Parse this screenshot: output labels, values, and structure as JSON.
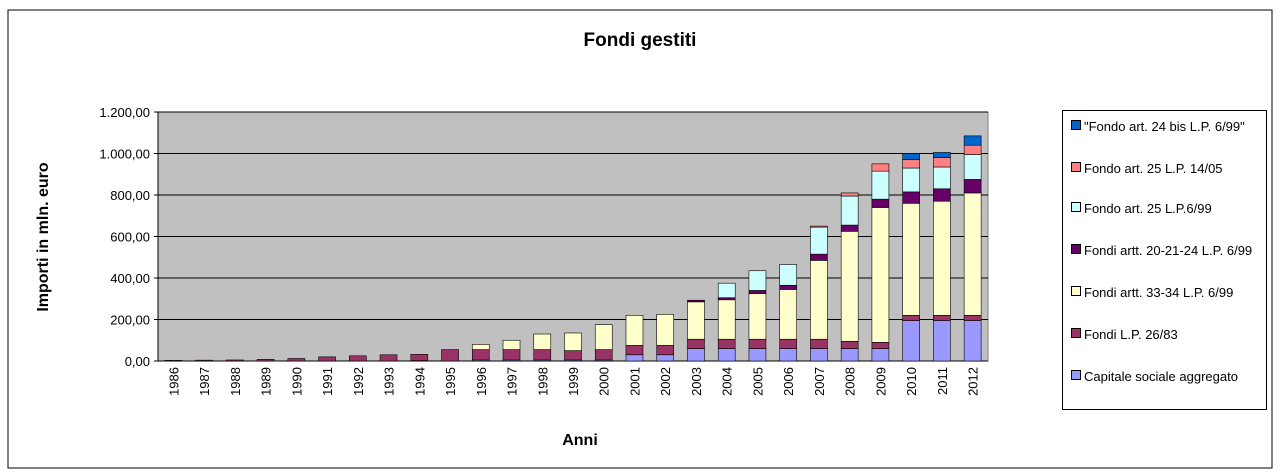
{
  "chart_data": {
    "type": "stacked_bar",
    "title": "Fondi gestiti",
    "xlabel": "Anni",
    "ylabel": "Importi in mln. euro",
    "categories": [
      "1986",
      "1987",
      "1988",
      "1989",
      "1990",
      "1991",
      "1992",
      "1993",
      "1994",
      "1995",
      "1996",
      "1997",
      "1998",
      "1999",
      "2000",
      "2001",
      "2002",
      "2003",
      "2004",
      "2005",
      "2006",
      "2007",
      "2008",
      "2009",
      "2010",
      "2011",
      "2012"
    ],
    "series": [
      {
        "name": "Capitale sociale aggregato",
        "color": "#9999ff",
        "values": [
          null,
          null,
          null,
          null,
          null,
          null,
          null,
          null,
          2,
          null,
          5,
          5,
          5,
          5,
          5,
          30,
          30,
          60,
          60,
          60,
          60,
          60,
          60,
          60,
          195,
          195,
          195
        ]
      },
      {
        "name": "Fondi L.P. 26/83",
        "color": "#993366",
        "values": [
          3,
          4,
          5,
          8,
          12,
          20,
          25,
          30,
          30,
          55,
          50,
          50,
          50,
          45,
          50,
          45,
          45,
          45,
          45,
          45,
          45,
          45,
          35,
          30,
          25,
          25,
          25
        ]
      },
      {
        "name": "Fondi artt. 33-34 L.P. 6/99",
        "color": "#ffffcc",
        "values": [
          null,
          null,
          null,
          null,
          null,
          null,
          null,
          null,
          null,
          null,
          25,
          45,
          75,
          85,
          120,
          145,
          150,
          180,
          190,
          220,
          240,
          380,
          530,
          650,
          540,
          550,
          590
        ]
      },
      {
        "name": "Fondi artt. 20-21-24 L.P. 6/99",
        "color": "#660066",
        "values": [
          null,
          null,
          null,
          null,
          null,
          null,
          null,
          null,
          null,
          null,
          null,
          null,
          null,
          null,
          null,
          null,
          null,
          8,
          10,
          15,
          20,
          30,
          30,
          40,
          55,
          60,
          65
        ]
      },
      {
        "name": "Fondo art. 25 L.P.6/99",
        "color": "#ccffff",
        "values": [
          null,
          null,
          null,
          null,
          null,
          null,
          null,
          null,
          null,
          null,
          null,
          null,
          null,
          null,
          null,
          null,
          null,
          null,
          70,
          95,
          100,
          130,
          140,
          135,
          115,
          105,
          120
        ]
      },
      {
        "name": "Fondo art. 25 L.P. 14/05",
        "color": "#ff8080",
        "values": [
          null,
          null,
          null,
          null,
          null,
          null,
          null,
          null,
          null,
          null,
          null,
          null,
          null,
          null,
          null,
          null,
          null,
          null,
          null,
          null,
          null,
          5,
          15,
          35,
          40,
          45,
          45
        ]
      },
      {
        "name": "\"Fondo art. 24 bis L.P. 6/99\"",
        "color": "#0066cc",
        "values": [
          null,
          null,
          null,
          null,
          null,
          null,
          null,
          null,
          null,
          null,
          null,
          null,
          null,
          null,
          null,
          null,
          null,
          null,
          null,
          null,
          null,
          null,
          null,
          null,
          30,
          25,
          45
        ]
      }
    ],
    "ylim": [
      0,
      1200
    ],
    "yticks": [
      {
        "value": 0,
        "label": "0,00"
      },
      {
        "value": 200,
        "label": "200,00"
      },
      {
        "value": 400,
        "label": "400,00"
      },
      {
        "value": 600,
        "label": "600,00"
      },
      {
        "value": 800,
        "label": "800,00"
      },
      {
        "value": 1000,
        "label": "1.000,00"
      },
      {
        "value": 1200,
        "label": "1.200,00"
      }
    ],
    "grid": true,
    "legend": "right",
    "plot_background": "#c0c0c0"
  }
}
